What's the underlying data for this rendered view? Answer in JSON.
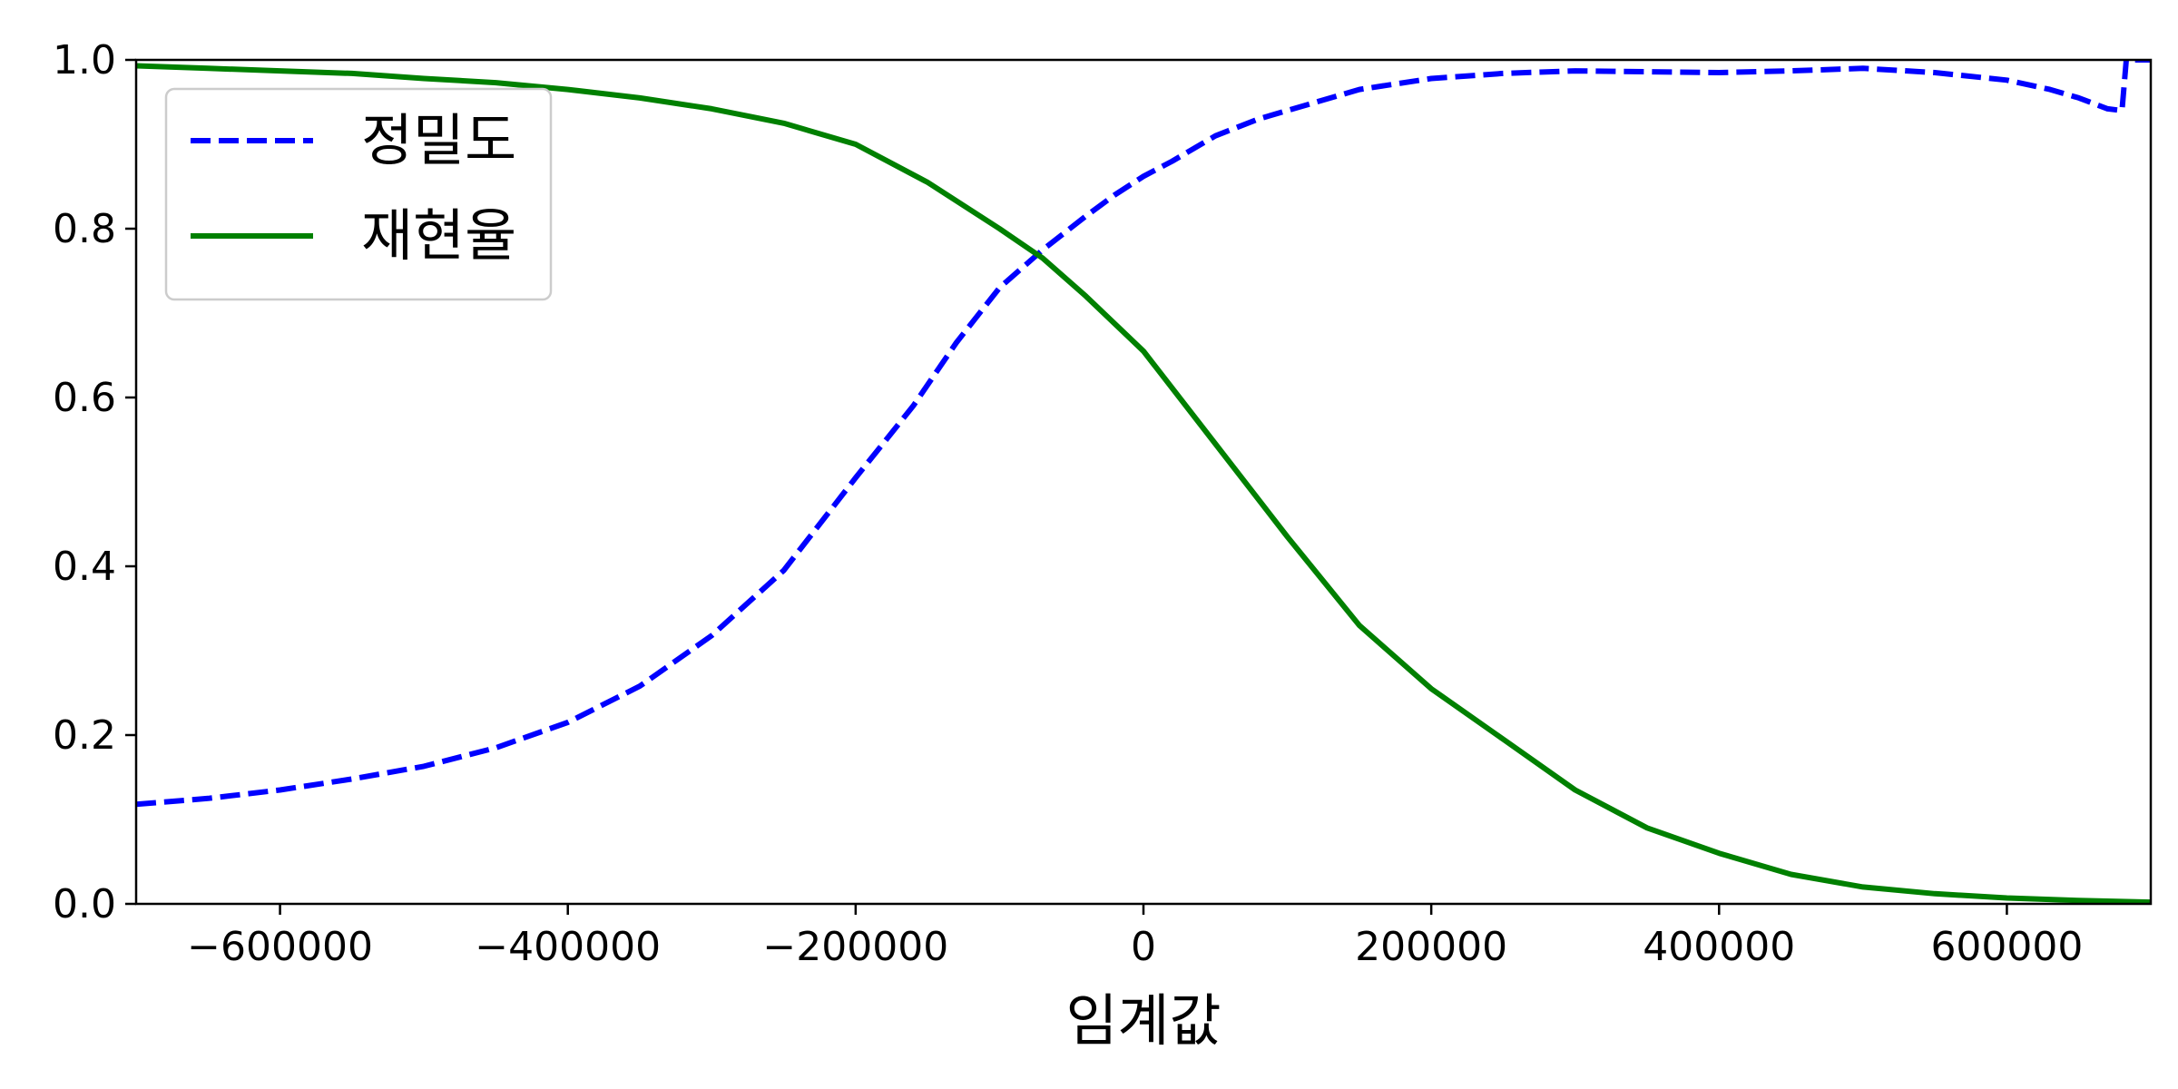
{
  "chart_data": {
    "type": "line",
    "title": "",
    "xlabel": "임계값",
    "ylabel": "",
    "xlim": [
      -700000,
      700000
    ],
    "ylim": [
      0,
      1
    ],
    "xticks": [
      -600000,
      -400000,
      -200000,
      0,
      200000,
      400000,
      600000
    ],
    "xtick_labels": [
      "−600000",
      "−400000",
      "−200000",
      "0",
      "200000",
      "400000",
      "600000"
    ],
    "yticks": [
      0,
      0.2,
      0.4,
      0.6,
      0.8,
      1.0
    ],
    "ytick_labels": [
      "0.0",
      "0.2",
      "0.4",
      "0.6",
      "0.8",
      "1.0"
    ],
    "grid": false,
    "legend_position": "top-left",
    "series": [
      {
        "name": "정밀도",
        "color": "#0000ff",
        "style": "dashed",
        "x": [
          -700000,
          -650000,
          -600000,
          -550000,
          -500000,
          -450000,
          -400000,
          -350000,
          -300000,
          -250000,
          -200000,
          -160000,
          -130000,
          -100000,
          -70000,
          -40000,
          -20000,
          0,
          20000,
          50000,
          80000,
          100000,
          150000,
          200000,
          250000,
          300000,
          350000,
          400000,
          450000,
          500000,
          550000,
          600000,
          630000,
          650000,
          670000,
          680000,
          683000,
          700000
        ],
        "y": [
          0.118,
          0.125,
          0.135,
          0.148,
          0.163,
          0.185,
          0.215,
          0.258,
          0.318,
          0.395,
          0.505,
          0.59,
          0.665,
          0.73,
          0.775,
          0.815,
          0.84,
          0.862,
          0.88,
          0.91,
          0.93,
          0.94,
          0.965,
          0.978,
          0.984,
          0.987,
          0.986,
          0.985,
          0.987,
          0.99,
          0.985,
          0.976,
          0.965,
          0.955,
          0.942,
          0.94,
          1.0,
          1.0
        ]
      },
      {
        "name": "재현율",
        "color": "#008000",
        "style": "solid",
        "x": [
          -700000,
          -650000,
          -600000,
          -550000,
          -500000,
          -450000,
          -400000,
          -350000,
          -300000,
          -250000,
          -200000,
          -150000,
          -100000,
          -70000,
          -40000,
          0,
          50000,
          100000,
          150000,
          200000,
          250000,
          300000,
          350000,
          400000,
          450000,
          500000,
          550000,
          600000,
          650000,
          700000
        ],
        "y": [
          0.993,
          0.99,
          0.987,
          0.984,
          0.978,
          0.973,
          0.965,
          0.955,
          0.942,
          0.925,
          0.9,
          0.855,
          0.8,
          0.765,
          0.72,
          0.655,
          0.545,
          0.435,
          0.33,
          0.255,
          0.195,
          0.135,
          0.09,
          0.06,
          0.035,
          0.02,
          0.012,
          0.007,
          0.004,
          0.002
        ]
      }
    ]
  }
}
